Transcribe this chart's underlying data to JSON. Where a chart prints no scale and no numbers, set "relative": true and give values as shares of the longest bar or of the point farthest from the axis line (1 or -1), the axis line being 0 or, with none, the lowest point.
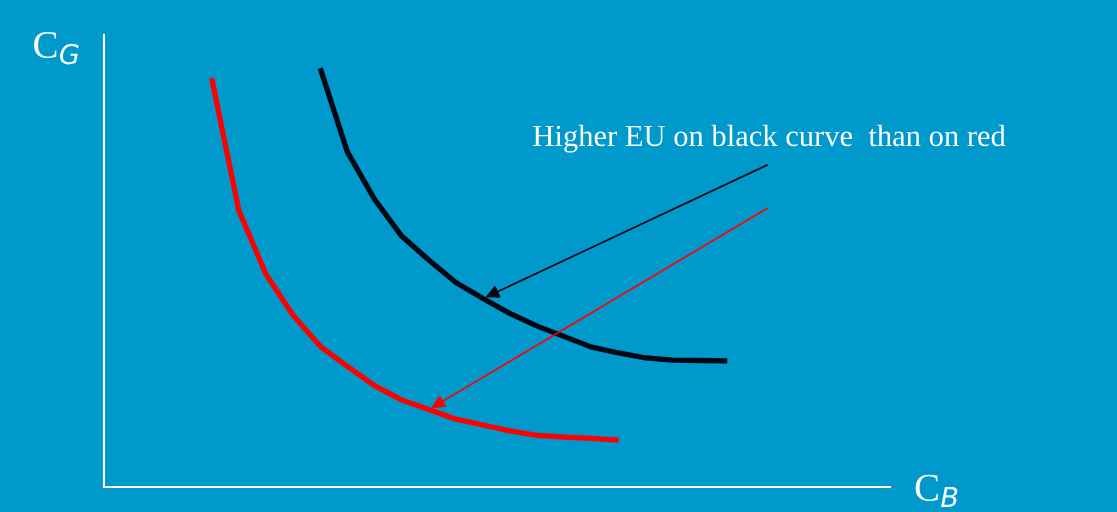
{
  "chart_data": {
    "type": "line",
    "relative": true,
    "xlabel": "C$_{B}$",
    "ylabel": "C$_{G}$",
    "legend": false,
    "categories": [
      null,
      null,
      null,
      null,
      null,
      null,
      null,
      null,
      null,
      null,
      null,
      null,
      null,
      null,
      null,
      null,
      null,
      null,
      null,
      null
    ],
    "annotations": [
      "Higher EU on black curve  than on red"
    ],
    "series": [
      {
        "color": "#ff0000",
        "values": [
          0.976,
          0.66,
          0.508,
          0.41,
          0.336,
          0.288,
          0.242,
          0.208,
          0.185,
          0.162,
          0.148,
          0.134,
          0.123,
          0.119,
          0.116,
          0.112,
          null,
          null,
          null,
          null
        ]
      },
      {
        "color": "#000814",
        "values": [
          null,
          null,
          null,
          null,
          1.0,
          0.8,
          0.687,
          0.599,
          0.542,
          0.488,
          0.45,
          0.414,
          0.384,
          0.359,
          0.334,
          0.32,
          0.308,
          0.303,
          0.302,
          0.301
        ]
      }
    ]
  }
}
